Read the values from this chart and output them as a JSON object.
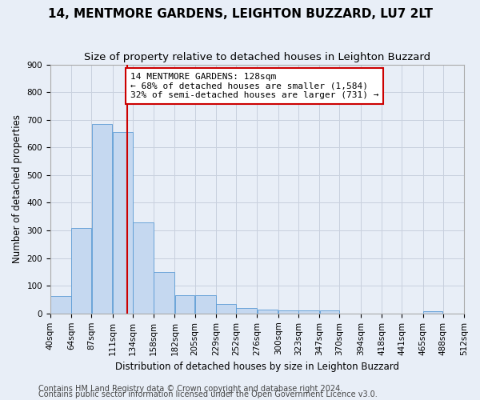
{
  "title": "14, MENTMORE GARDENS, LEIGHTON BUZZARD, LU7 2LT",
  "subtitle": "Size of property relative to detached houses in Leighton Buzzard",
  "xlabel": "Distribution of detached houses by size in Leighton Buzzard",
  "ylabel": "Number of detached properties",
  "footnote1": "Contains HM Land Registry data © Crown copyright and database right 2024.",
  "footnote2": "Contains public sector information licensed under the Open Government Licence v3.0.",
  "bin_edges": [
    40,
    64,
    87,
    111,
    134,
    158,
    182,
    205,
    229,
    252,
    276,
    300,
    323,
    347,
    370,
    394,
    418,
    441,
    465,
    488,
    512
  ],
  "bin_labels": [
    "40sqm",
    "64sqm",
    "87sqm",
    "111sqm",
    "134sqm",
    "158sqm",
    "182sqm",
    "205sqm",
    "229sqm",
    "252sqm",
    "276sqm",
    "300sqm",
    "323sqm",
    "347sqm",
    "370sqm",
    "394sqm",
    "418sqm",
    "441sqm",
    "465sqm",
    "488sqm",
    "512sqm"
  ],
  "bar_heights": [
    62,
    310,
    685,
    655,
    328,
    150,
    65,
    65,
    33,
    20,
    13,
    12,
    12,
    10,
    0,
    0,
    0,
    0,
    8,
    0
  ],
  "bar_color": "#c5d8f0",
  "bar_edge_color": "#5b9bd5",
  "grid_color": "#c8d0de",
  "background_color": "#e8eef7",
  "vline_x": 128,
  "vline_color": "#cc0000",
  "annotation_line1": "14 MENTMORE GARDENS: 128sqm",
  "annotation_line2": "← 68% of detached houses are smaller (1,584)",
  "annotation_line3": "32% of semi-detached houses are larger (731) →",
  "annotation_box_color": "#ffffff",
  "annotation_border_color": "#cc0000",
  "ylim": [
    0,
    900
  ],
  "yticks": [
    0,
    100,
    200,
    300,
    400,
    500,
    600,
    700,
    800,
    900
  ],
  "title_fontsize": 11,
  "subtitle_fontsize": 9.5,
  "axis_label_fontsize": 8.5,
  "tick_fontsize": 7.5,
  "annotation_fontsize": 8,
  "footnote_fontsize": 7
}
